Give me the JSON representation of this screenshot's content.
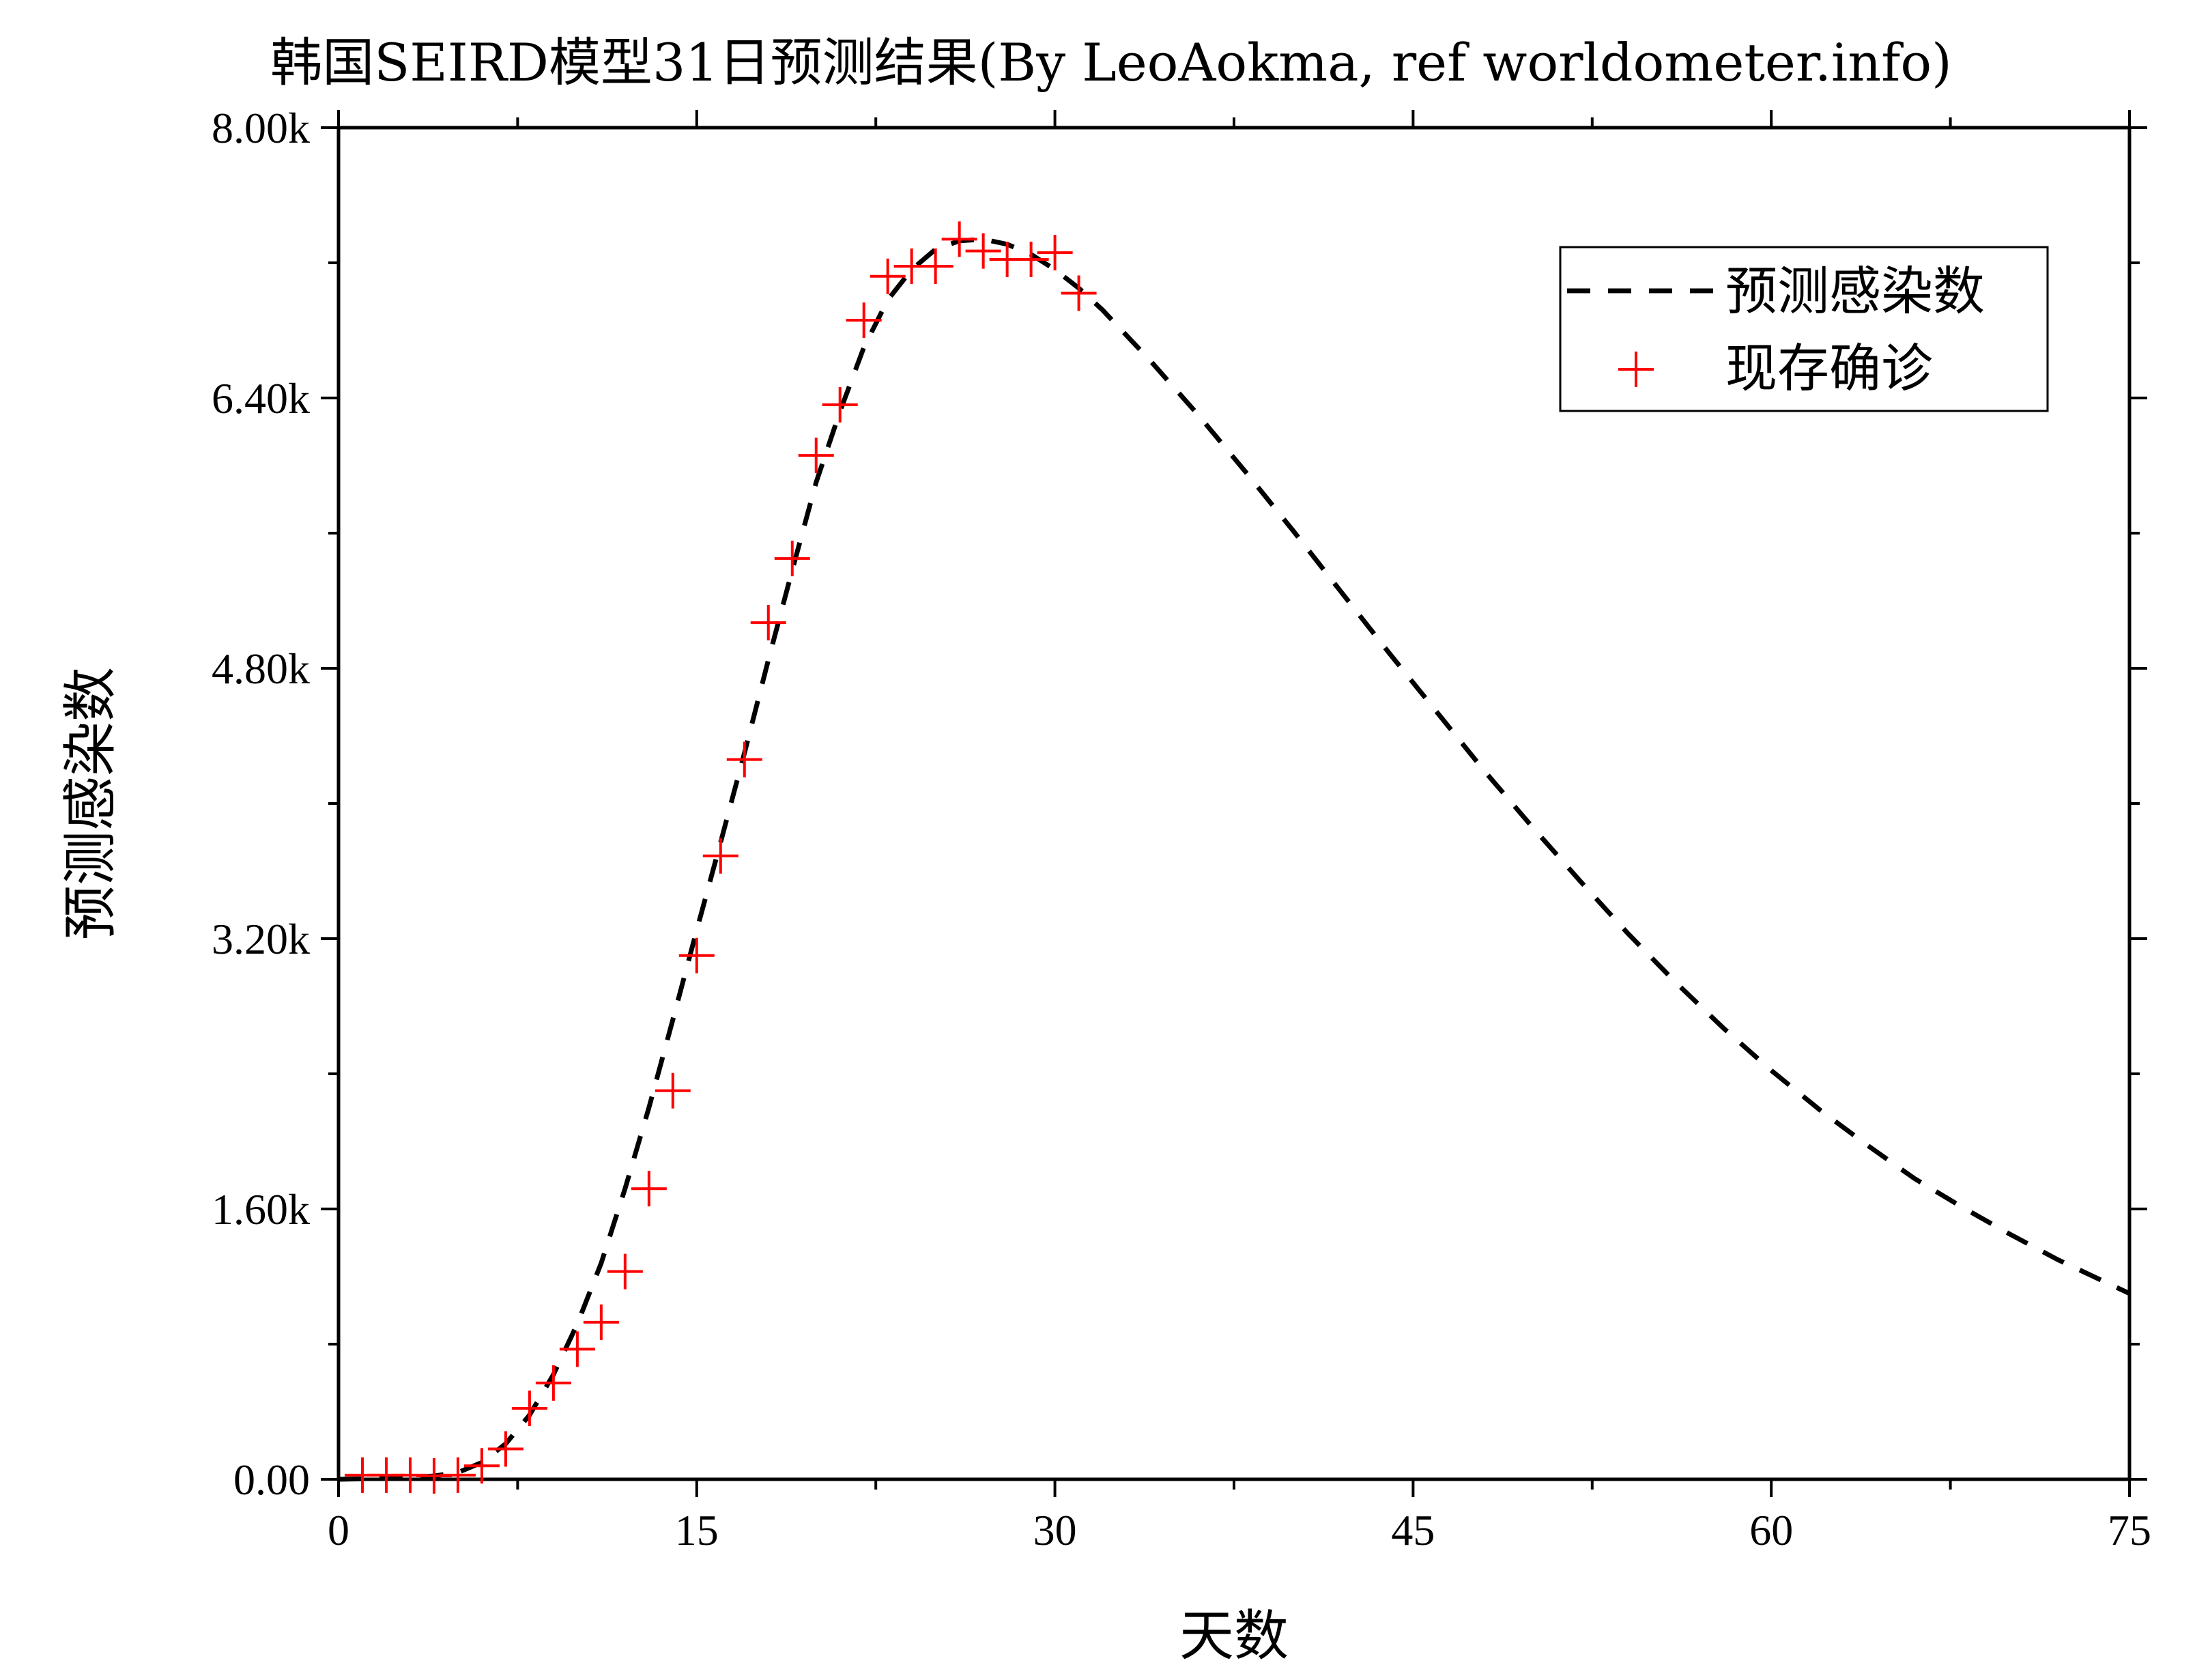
{
  "chart_data": {
    "type": "line",
    "title": "韩国SEIRD模型31日预测结果(By LeoAokma, ref worldometer.info)",
    "xlabel": "天数",
    "ylabel": "预测感染数",
    "xlim": [
      0,
      75
    ],
    "ylim": [
      0,
      8000
    ],
    "x_ticks": [
      0,
      15,
      30,
      45,
      60,
      75
    ],
    "x_tick_labels": [
      "0",
      "15",
      "30",
      "45",
      "60",
      "75"
    ],
    "y_ticks": [
      0,
      1600,
      3200,
      4800,
      6400,
      8000
    ],
    "y_tick_labels": [
      "0.00",
      "1.60k",
      "3.20k",
      "4.80k",
      "6.40k",
      "8.00k"
    ],
    "grid": false,
    "legend_position": "top-right",
    "colors": {
      "prediction": "#000000",
      "observed": "#ff0000"
    },
    "series": [
      {
        "name": "预测感染数",
        "style": "dashed-line",
        "x": [
          0,
          2,
          4,
          5,
          6,
          7,
          8,
          9,
          10,
          11,
          12,
          13,
          14,
          15,
          16,
          17,
          18,
          19,
          20,
          21,
          22,
          23,
          24,
          25,
          26,
          27,
          28,
          29,
          30,
          31,
          32,
          34,
          36,
          38,
          40,
          42,
          44,
          46,
          48,
          50,
          52,
          54,
          56,
          58,
          60,
          62,
          64,
          66,
          68,
          70,
          72,
          75
        ],
        "y": [
          0,
          5,
          20,
          40,
          100,
          210,
          380,
          620,
          920,
          1280,
          1720,
          2200,
          2720,
          3250,
          3770,
          4300,
          4850,
          5380,
          5900,
          6320,
          6700,
          6980,
          7160,
          7280,
          7330,
          7340,
          7310,
          7250,
          7160,
          7050,
          6920,
          6620,
          6300,
          5960,
          5610,
          5250,
          4890,
          4540,
          4190,
          3860,
          3540,
          3230,
          2940,
          2670,
          2420,
          2190,
          1980,
          1780,
          1610,
          1450,
          1300,
          1100
        ]
      },
      {
        "name": "现存确诊",
        "style": "plus-markers",
        "x": [
          1,
          2,
          3,
          4,
          5,
          6,
          7,
          8,
          9,
          10,
          11,
          12,
          13,
          14,
          15,
          16,
          17,
          18,
          19,
          20,
          21,
          22,
          23,
          24,
          25,
          26,
          27,
          28,
          29,
          30,
          31
        ],
        "y": [
          25,
          25,
          25,
          20,
          25,
          80,
          180,
          420,
          570,
          770,
          930,
          1230,
          1720,
          2300,
          3100,
          3690,
          4260,
          5070,
          5450,
          6060,
          6360,
          6860,
          7120,
          7180,
          7180,
          7340,
          7270,
          7220,
          7220,
          7260,
          7020
        ]
      }
    ]
  }
}
